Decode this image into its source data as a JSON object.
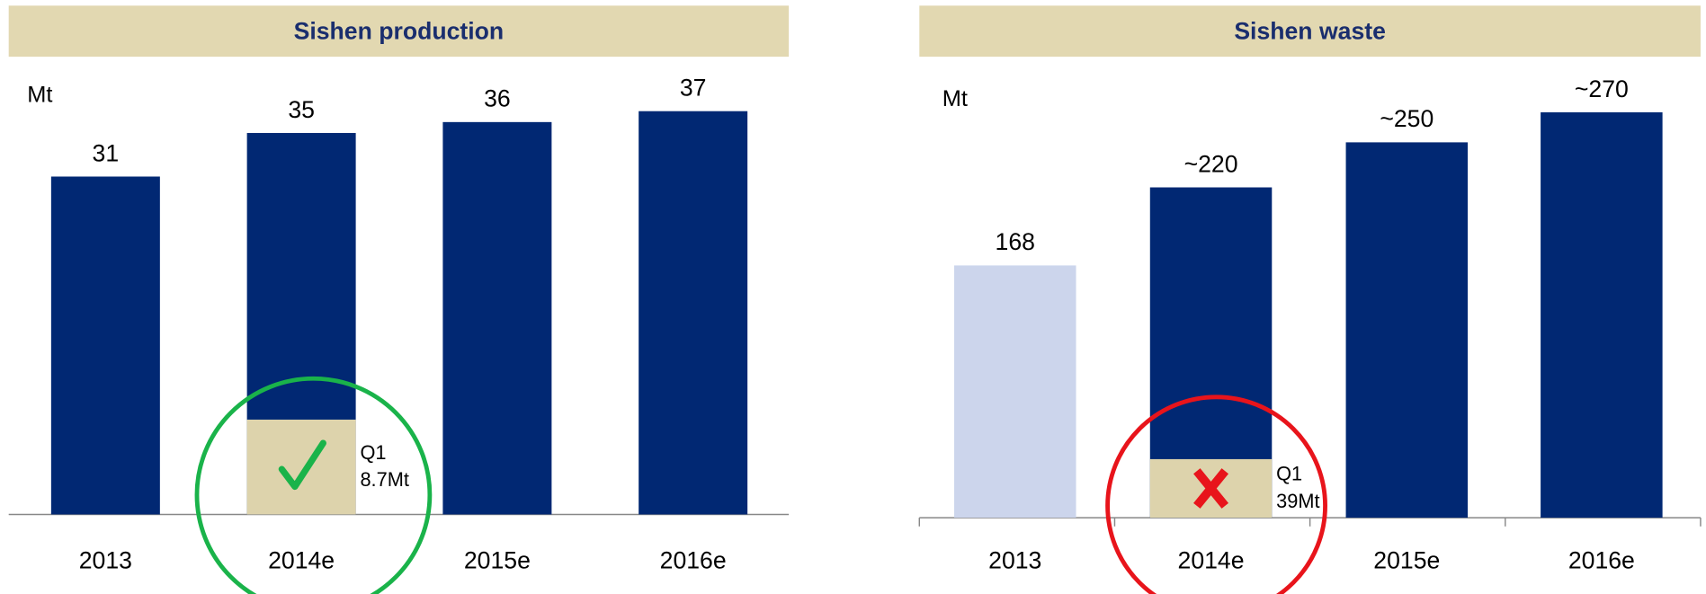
{
  "chart_data": [
    {
      "type": "bar",
      "title": "Sishen production",
      "y_label": "Mt",
      "categories": [
        "2013",
        "2014e",
        "2015e",
        "2016e"
      ],
      "values": [
        31,
        35,
        36,
        37
      ],
      "value_labels": [
        "31",
        "35",
        "36",
        "37"
      ],
      "colors": [
        "#012873",
        "#012873",
        "#012873",
        "#012873"
      ],
      "ylim": [
        0,
        40
      ],
      "annotation": {
        "category": "2014e",
        "label": "Q1",
        "value": 8.7,
        "value_label": "8.7Mt",
        "color": "#ddd3ac"
      }
    },
    {
      "type": "bar",
      "title": "Sishen waste",
      "y_label": "Mt",
      "categories": [
        "2013",
        "2014e",
        "2015e",
        "2016e"
      ],
      "values": [
        168,
        220,
        250,
        270
      ],
      "value_labels": [
        "168",
        "~220",
        "~250",
        "~270"
      ],
      "colors": [
        "#ccd5ec",
        "#012873",
        "#012873",
        "#012873"
      ],
      "ylim": [
        0,
        290
      ],
      "annotation": {
        "category": "2014e",
        "label": "Q1",
        "value": 39,
        "value_label": "39Mt",
        "color": "#ddd3ac"
      }
    }
  ]
}
